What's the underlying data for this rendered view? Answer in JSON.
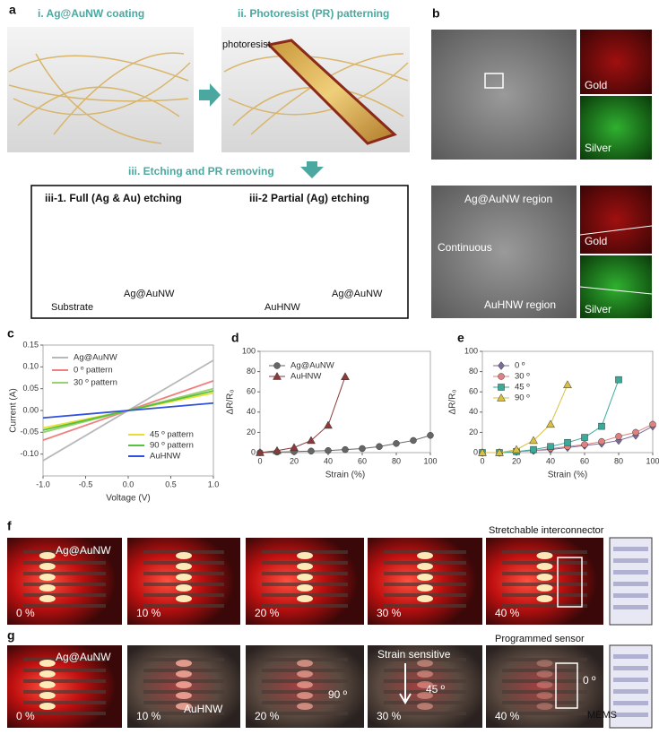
{
  "labels": [
    "a",
    "b",
    "c",
    "d",
    "e",
    "f",
    "g"
  ],
  "panel_a": {
    "step1": "i. Ag@AuNW coating",
    "step2": "ii. Photoresist (PR) patterning",
    "photoresist": "photoresist",
    "step3": "iii. Etching and PR removing",
    "full": "iii-1. Full (Ag & Au) etching",
    "partial": "iii-2 Partial (Ag) etching",
    "substrate": "Substrate",
    "full_wire": "Ag@AuNW",
    "partial_hollow": "AuHNW",
    "partial_wire": "Ag@AuNW"
  },
  "panel_b": {
    "top": {
      "gold": "Gold",
      "silver": "Silver"
    },
    "bottom": {
      "region1": "Ag@AuNW region",
      "middle": "Continuous",
      "region2": "AuHNW region",
      "gold": "Gold",
      "silver": "Silver"
    }
  },
  "panel_f": {
    "title": "Stretchable interconnector",
    "sample": "Ag@AuNW",
    "strains": [
      "0 %",
      "10 %",
      "20 %",
      "30 %",
      "40 %"
    ]
  },
  "panel_g": {
    "title": "Programmed sensor",
    "sample1": "Ag@AuNW",
    "sample2": "AuHNW",
    "note": "Strain sensitive",
    "angles": [
      "90 º",
      "45 º",
      "0 º"
    ],
    "strains": [
      "0 %",
      "10 %",
      "20 %",
      "30 %",
      "40 %"
    ]
  },
  "watermark": "MEMS",
  "chart_data": [
    {
      "type": "line",
      "x_label": "Voltage (V)",
      "y_label": "Current (A)",
      "x": [
        -1,
        0,
        1
      ],
      "xlim": [
        -1,
        1
      ],
      "xticks": [
        {
          "value": -1,
          "label": "-1.0"
        },
        {
          "value": -0.5,
          "label": "-0.5"
        },
        {
          "value": 0,
          "label": "0.0"
        },
        {
          "value": 0.5,
          "label": "0.5"
        },
        {
          "value": 1,
          "label": "1.0"
        }
      ],
      "ylim": [
        -0.15,
        0.15
      ],
      "yticks": [
        {
          "value": -0.1,
          "label": "-0.10"
        },
        {
          "value": -0.05,
          "label": "-0.05"
        },
        {
          "value": 0,
          "label": "0.00"
        },
        {
          "value": 0.05,
          "label": "0.05"
        },
        {
          "value": 0.1,
          "label": "0.10"
        },
        {
          "value": 0.15,
          "label": "0.15"
        }
      ],
      "series": [
        {
          "name": "Ag@AuNW",
          "color": "#b8b8b8",
          "values": [
            -0.115,
            0,
            0.115
          ]
        },
        {
          "name": "0 º pattern",
          "color": "#f08080",
          "values": [
            -0.068,
            0,
            0.068
          ]
        },
        {
          "name": "30 º pattern",
          "color": "#9ad070",
          "values": [
            -0.05,
            0,
            0.05
          ]
        },
        {
          "name": "45 º pattern",
          "color": "#e8e030",
          "values": [
            -0.04,
            0,
            0.04
          ]
        },
        {
          "name": "90 º pattern",
          "color": "#58c040",
          "values": [
            -0.045,
            0,
            0.045
          ]
        },
        {
          "name": "AuHNW",
          "color": "#3050e0",
          "values": [
            -0.017,
            0,
            0.017
          ]
        }
      ]
    },
    {
      "type": "line",
      "x_label": "Strain (%)",
      "y_label": "ΔR/R₀",
      "xlim": [
        0,
        100
      ],
      "xticks": [
        0,
        20,
        40,
        60,
        80,
        100
      ],
      "ylim": [
        0,
        100
      ],
      "yticks": [
        0,
        20,
        40,
        60,
        80,
        100
      ],
      "series": [
        {
          "name": "Ag@AuNW",
          "color": "#666666",
          "marker": "circle",
          "x": [
            0,
            10,
            20,
            30,
            40,
            50,
            60,
            70,
            80,
            90,
            100
          ],
          "values": [
            0,
            0.5,
            1,
            1.5,
            2,
            3,
            4,
            6,
            9,
            12,
            17
          ]
        },
        {
          "name": "AuHNW",
          "color": "#8b3a3a",
          "marker": "triangle",
          "x": [
            0,
            10,
            20,
            30,
            40,
            50
          ],
          "values": [
            0,
            2,
            5,
            12,
            27,
            75
          ]
        }
      ]
    },
    {
      "type": "line",
      "x_label": "Strain (%)",
      "y_label": "ΔR/R₀",
      "xlim": [
        0,
        100
      ],
      "xticks": [
        0,
        20,
        40,
        60,
        80,
        100
      ],
      "ylim": [
        0,
        100
      ],
      "yticks": [
        0,
        20,
        40,
        60,
        80,
        100
      ],
      "series": [
        {
          "name": "0 º",
          "color": "#7a6a9a",
          "marker": "diamond",
          "x": [
            0,
            10,
            20,
            30,
            40,
            50,
            60,
            70,
            80,
            90,
            100
          ],
          "values": [
            0,
            0,
            1,
            2,
            3,
            5,
            7,
            9,
            12,
            17,
            26
          ]
        },
        {
          "name": "30 º",
          "color": "#e08080",
          "marker": "circle",
          "x": [
            0,
            10,
            20,
            30,
            40,
            50,
            60,
            70,
            80,
            90,
            100
          ],
          "values": [
            0,
            0,
            1,
            2,
            4,
            6,
            8,
            11,
            16,
            20,
            28
          ]
        },
        {
          "name": "45 º",
          "color": "#3aaa9a",
          "marker": "square",
          "x": [
            0,
            10,
            20,
            30,
            40,
            50,
            60,
            70,
            80
          ],
          "values": [
            0,
            0,
            1,
            3,
            6,
            10,
            15,
            26,
            72
          ]
        },
        {
          "name": "90 º",
          "color": "#d8c040",
          "marker": "triangle",
          "x": [
            0,
            10,
            20,
            30,
            40,
            50
          ],
          "values": [
            0,
            0,
            3,
            12,
            28,
            67
          ]
        }
      ]
    }
  ]
}
